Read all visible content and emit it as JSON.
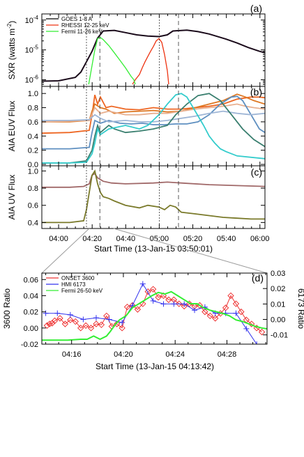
{
  "chart_data": [
    {
      "id": "a",
      "panel_label": "(a)",
      "type": "line",
      "y_scale": "log",
      "ylabel": "SXR (watts m",
      "ylabel_sup": "-2",
      "ylabel_close": ")",
      "ylim": [
        6e-07,
        0.00016
      ],
      "y_ticks": [
        {
          "value": 0.0001,
          "base": "10",
          "exp": "-4"
        },
        {
          "value": 1e-05,
          "base": "10",
          "exp": "-5"
        },
        {
          "value": 1e-06,
          "base": "10",
          "exp": "-6"
        }
      ],
      "legend": [
        {
          "label": "GOES 1-8 A",
          "color": "#000000"
        },
        {
          "label": "RHESSI 12-25 keV",
          "color": "#ee3311"
        },
        {
          "label": "Fermi 11-26 keV",
          "color": "#33ee33"
        }
      ],
      "series": [
        {
          "name": "GOES 1-8 A",
          "color": "#1a0a1a",
          "width": 2,
          "x": [
            0,
            6,
            12,
            14,
            16,
            18,
            19,
            20,
            22,
            26,
            30,
            34,
            38,
            42,
            45,
            47,
            52,
            56,
            60,
            66,
            70,
            74,
            78,
            80
          ],
          "y": [
            9e-07,
            9.2e-07,
            1.2e-06,
            1.8e-06,
            4e-06,
            9e-06,
            1.5e-05,
            2.5e-05,
            4.3e-05,
            4.5e-05,
            3.8e-05,
            3.2e-05,
            2.9e-05,
            2.8e-05,
            3.2e-05,
            4.3e-05,
            4.6e-05,
            4.1e-05,
            3.4e-05,
            2.3e-05,
            1.7e-05,
            1.2e-05,
            9e-06,
            8e-06
          ]
        },
        {
          "name": "RHESSI 12-25 keV",
          "color": "#ee3311",
          "width": 1.3,
          "x": [
            32.5,
            33.5,
            35,
            36,
            37,
            38,
            39,
            40,
            41,
            42,
            43,
            44,
            45,
            45.5
          ],
          "y": [
            7e-07,
            1e-06,
            1.5e-06,
            2.5e-06,
            4e-06,
            6e-06,
            9e-06,
            1.3e-05,
            2e-05,
            2.4e-05,
            1.8e-05,
            7e-06,
            2e-06,
            7e-07
          ]
        },
        {
          "name": "Fermi 11-26 keV",
          "color": "#33ee33",
          "width": 1.3,
          "x": [
            16.8,
            18,
            19,
            20,
            21,
            22,
            24,
            26,
            28,
            30,
            31,
            32,
            33,
            33.5
          ],
          "y": [
            7e-07,
            3e-06,
            1e-05,
            2.4e-05,
            2.6e-05,
            2.2e-05,
            1.4e-05,
            8e-06,
            4.5e-06,
            2.5e-06,
            1.8e-06,
            1.3e-06,
            1e-06,
            7e-07
          ]
        }
      ]
    },
    {
      "id": "b",
      "panel_label": "(b)",
      "type": "line",
      "ylabel": "AIA EUV Flux",
      "ylim": [
        -0.02,
        1.1
      ],
      "y_ticks": [
        "0.0",
        "0.2",
        "0.4",
        "0.6",
        "0.8",
        "1.0"
      ],
      "series": [
        {
          "name": "",
          "color": "#ee6622",
          "x": [
            0,
            10,
            17,
            18,
            19,
            20,
            21,
            23,
            25,
            30,
            35,
            40,
            45,
            50,
            55,
            60,
            65,
            70,
            75,
            78,
            80
          ],
          "y": [
            0.44,
            0.45,
            0.48,
            0.7,
            0.98,
            0.85,
            0.95,
            0.8,
            0.82,
            0.78,
            0.77,
            0.8,
            0.78,
            0.78,
            0.8,
            0.82,
            0.85,
            0.92,
            0.95,
            0.95,
            0.94
          ]
        },
        {
          "name": "",
          "color": "#dd7722",
          "x": [
            0,
            10,
            17,
            18,
            19,
            21,
            23,
            26,
            30,
            35,
            40,
            45,
            50,
            55,
            60,
            65,
            70,
            73,
            76,
            80
          ],
          "y": [
            0.6,
            0.6,
            0.62,
            0.75,
            0.85,
            0.8,
            0.78,
            0.72,
            0.74,
            0.75,
            0.76,
            0.74,
            0.75,
            0.8,
            0.85,
            0.9,
            0.99,
            0.95,
            0.9,
            0.85
          ]
        },
        {
          "name": "",
          "color": "#e8b090",
          "x": [
            0,
            10,
            17,
            19,
            21,
            24,
            30,
            35,
            40,
            45,
            50,
            55,
            60,
            65,
            70,
            73,
            76,
            80
          ],
          "y": [
            0.6,
            0.61,
            0.62,
            0.8,
            0.72,
            0.75,
            0.7,
            0.7,
            0.72,
            0.72,
            0.75,
            0.78,
            0.8,
            0.82,
            0.85,
            0.82,
            0.8,
            0.78
          ]
        },
        {
          "name": "",
          "color": "#5e8fc0",
          "x": [
            0,
            10,
            17,
            18,
            19,
            21,
            24,
            28,
            32,
            36,
            40,
            44,
            48,
            52,
            56,
            60,
            64,
            68,
            70,
            72,
            75,
            78,
            80
          ],
          "y": [
            0.22,
            0.22,
            0.24,
            0.45,
            0.62,
            0.58,
            0.62,
            0.58,
            0.57,
            0.58,
            0.56,
            0.56,
            0.57,
            0.57,
            0.6,
            0.7,
            0.85,
            0.95,
            0.96,
            0.9,
            0.7,
            0.5,
            0.45
          ]
        },
        {
          "name": "",
          "color": "#9fb6d6",
          "x": [
            0,
            10,
            17,
            19,
            21,
            24,
            30,
            35,
            40,
            45,
            50,
            55,
            60,
            65,
            70,
            75,
            80
          ],
          "y": [
            0.62,
            0.62,
            0.63,
            0.7,
            0.65,
            0.6,
            0.62,
            0.6,
            0.6,
            0.62,
            0.65,
            0.68,
            0.72,
            0.75,
            0.72,
            0.7,
            0.72
          ]
        },
        {
          "name": "",
          "color": "#3a7f6f",
          "x": [
            0,
            10,
            16,
            18,
            19,
            20,
            21,
            24,
            26,
            30,
            35,
            40,
            45,
            48,
            52,
            56,
            60,
            64,
            68,
            72,
            76,
            80
          ],
          "y": [
            0.02,
            0.02,
            0.05,
            0.2,
            0.4,
            0.55,
            0.45,
            0.55,
            0.5,
            0.45,
            0.47,
            0.5,
            0.55,
            0.7,
            0.85,
            0.97,
            1.0,
            0.9,
            0.7,
            0.5,
            0.35,
            0.25
          ]
        },
        {
          "name": "",
          "color": "#33cccc",
          "x": [
            0,
            10,
            16,
            18,
            19,
            20,
            21,
            24,
            30,
            35,
            38,
            42,
            45,
            48,
            50,
            52,
            55,
            58,
            60,
            62,
            64,
            66,
            70,
            80
          ],
          "y": [
            0.02,
            0.02,
            0.03,
            0.15,
            0.3,
            0.5,
            0.42,
            0.5,
            0.55,
            0.5,
            0.55,
            0.7,
            0.85,
            0.98,
            1.0,
            0.95,
            0.75,
            0.55,
            0.4,
            0.3,
            0.22,
            0.18,
            0.12,
            0.08
          ]
        }
      ]
    },
    {
      "id": "c",
      "panel_label": "(c)",
      "type": "line",
      "ylabel": "AIA UV Flux",
      "ylim": [
        0.33,
        1.06
      ],
      "y_ticks": [
        "0.4",
        "0.6",
        "0.8",
        "1.0"
      ],
      "x_ticks": [
        "04:00",
        "04:20",
        "04:40",
        "05:00",
        "05:20",
        "05:40",
        "06:00"
      ],
      "x_tick_values": [
        10,
        30,
        50,
        70,
        90,
        110,
        130
      ],
      "xlabel": "Start Time (13-Jan-15 03:50:01)",
      "series": [
        {
          "name": "",
          "color": "#a06868",
          "x": [
            0,
            10,
            15,
            17,
            18,
            19,
            20,
            22,
            25,
            30,
            40,
            45,
            50,
            60,
            70,
            80
          ],
          "y": [
            0.81,
            0.81,
            0.82,
            0.85,
            0.95,
            0.97,
            0.92,
            0.88,
            0.86,
            0.85,
            0.86,
            0.87,
            0.86,
            0.84,
            0.83,
            0.82
          ]
        },
        {
          "name": "",
          "color": "#7a7a2a",
          "x": [
            0,
            10,
            15,
            16,
            17,
            18,
            19,
            20,
            21,
            22,
            24,
            26,
            30,
            35,
            38,
            42,
            44,
            46,
            48,
            50,
            55,
            60,
            65,
            70,
            75,
            80
          ],
          "y": [
            0.4,
            0.4,
            0.42,
            0.55,
            0.75,
            0.95,
            1.0,
            0.85,
            0.75,
            0.7,
            0.68,
            0.65,
            0.6,
            0.57,
            0.6,
            0.58,
            0.55,
            0.6,
            0.58,
            0.52,
            0.5,
            0.48,
            0.46,
            0.45,
            0.44,
            0.44
          ]
        }
      ]
    },
    {
      "id": "d",
      "panel_label": "(d)",
      "type": "line",
      "ylabel": "3600 Ratio",
      "ylabel_right": "6173 Ratio",
      "ylim": [
        -0.02,
        0.068
      ],
      "y_ticks": [
        "0.06",
        "0.04",
        "0.02",
        "0.00",
        "-0.02"
      ],
      "y_tick_values": [
        0.06,
        0.04,
        0.02,
        0,
        -0.02
      ],
      "ylim_right": [
        -0.016,
        0.03
      ],
      "y_ticks_right": [
        "0.03",
        "0.02",
        "0.01",
        "0.00",
        "-0.01"
      ],
      "y_tick_values_right": [
        0.03,
        0.02,
        0.01,
        0,
        -0.01
      ],
      "x_ticks": [
        "04:16",
        "04:20",
        "04:24",
        "04:28"
      ],
      "x_tick_values": [
        2.3,
        6.3,
        10.3,
        14.3
      ],
      "xlim": [
        0,
        17.4
      ],
      "xlabel": "Start Time (13-Jan-15 04:13:42)",
      "legend": [
        {
          "label": "ONSET 3600",
          "color": "#ee3333"
        },
        {
          "label": "HMI 6173",
          "color": "#3333ee"
        },
        {
          "label": "Fermi 26-50 keV",
          "color": "#33ee33"
        }
      ],
      "series": [
        {
          "name": "ONSET 3600",
          "color": "#ee3333",
          "marker": "diamond",
          "x": [
            0.4,
            0.6,
            0.8,
            1,
            1.4,
            1.8,
            2.2,
            2.6,
            3,
            3.4,
            3.8,
            4.2,
            4.6,
            5,
            5.4,
            5.8,
            6.2,
            6.6,
            7,
            7.4,
            7.8,
            8.2,
            8.6,
            9,
            9.4,
            9.8,
            10.2,
            10.6,
            11,
            11.4,
            11.8,
            12.2,
            12.6,
            13,
            13.4,
            13.8,
            14.2,
            14.6,
            15,
            15.4,
            15.8,
            16.2,
            16.6,
            17
          ],
          "y": [
            0.003,
            0.005,
            0.006,
            0.009,
            0.012,
            0.005,
            0.01,
            0.008,
            0.0,
            0.003,
            0.0,
            0.005,
            0.004,
            0.015,
            0.002,
            0.005,
            0.0,
            0.026,
            0.028,
            0.023,
            0.03,
            0.045,
            0.048,
            0.038,
            0.04,
            0.035,
            0.035,
            0.03,
            0.027,
            0.03,
            0.027,
            0.028,
            0.02,
            0.015,
            0.012,
            0.018,
            0.025,
            0.04,
            0.03,
            0.02,
            0.01,
            0.005,
            0.0,
            -0.005
          ]
        },
        {
          "name": "HMI 6173",
          "color": "#3333ee",
          "marker": "plus",
          "axis": "right",
          "x": [
            0.3,
            1.2,
            2.2,
            3.2,
            4.2,
            5.2,
            6.2,
            7,
            7.8,
            8.6,
            9.4,
            10.2,
            11,
            11.8,
            12.6,
            13.4,
            14.2,
            15,
            15.8,
            16.6
          ],
          "y": [
            0.004,
            0.004,
            0.003,
            0.0,
            0.001,
            0.0,
            -0.002,
            0.009,
            0.023,
            0.012,
            0.01,
            0.01,
            0.01,
            0.006,
            0.008,
            0.004,
            0.004,
            0.004,
            -0.006,
            -0.016
          ]
        },
        {
          "name": "Fermi 26-50 keV",
          "color": "#33ee33",
          "width": 2,
          "x": [
            0,
            1,
            2,
            3,
            3.5,
            4,
            4.5,
            5,
            5.3,
            5.7,
            6,
            6.5,
            7,
            7.5,
            8,
            8.5,
            9,
            9.5,
            10,
            10.5,
            11,
            11.5,
            12,
            12.5,
            13,
            13.5,
            14,
            14.5,
            15,
            15.5,
            16,
            16.5,
            17,
            17.4
          ],
          "y": [
            -0.015,
            -0.015,
            -0.015,
            -0.014,
            -0.014,
            -0.01,
            -0.014,
            -0.01,
            -0.004,
            0.005,
            0.01,
            0.015,
            0.025,
            0.03,
            0.035,
            0.04,
            0.044,
            0.042,
            0.045,
            0.04,
            0.035,
            0.03,
            0.03,
            0.025,
            0.022,
            0.02,
            0.018,
            0.015,
            0.01,
            0.008,
            0.005,
            0.002,
            0.0,
            -0.001
          ]
        }
      ]
    }
  ]
}
